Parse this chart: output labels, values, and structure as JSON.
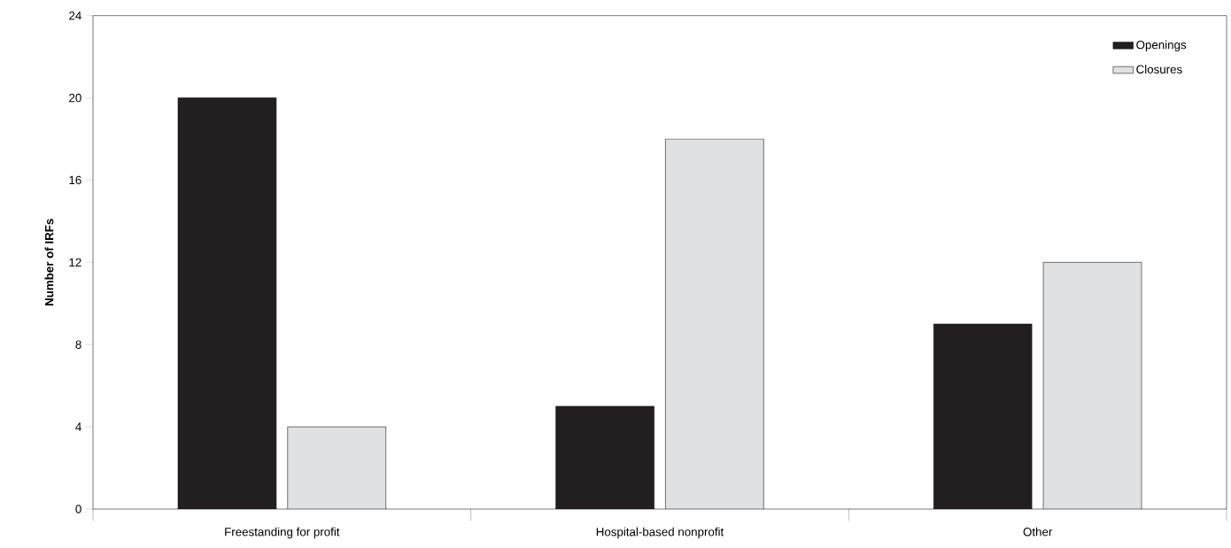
{
  "chart_data": {
    "type": "bar",
    "ylabel": "Number of IRFs",
    "categories": [
      "Freestanding for profit",
      "Hospital-based nonprofit",
      "Other"
    ],
    "series": [
      {
        "name": "Openings",
        "color": "#231f20",
        "values": [
          20,
          5,
          9
        ]
      },
      {
        "name": "Closures",
        "color": "#e0e1e3",
        "values": [
          4,
          18,
          12
        ]
      }
    ],
    "ylim": [
      0,
      24
    ],
    "yticks": [
      0,
      4,
      8,
      12,
      16,
      20,
      24
    ],
    "legend": "top right"
  }
}
